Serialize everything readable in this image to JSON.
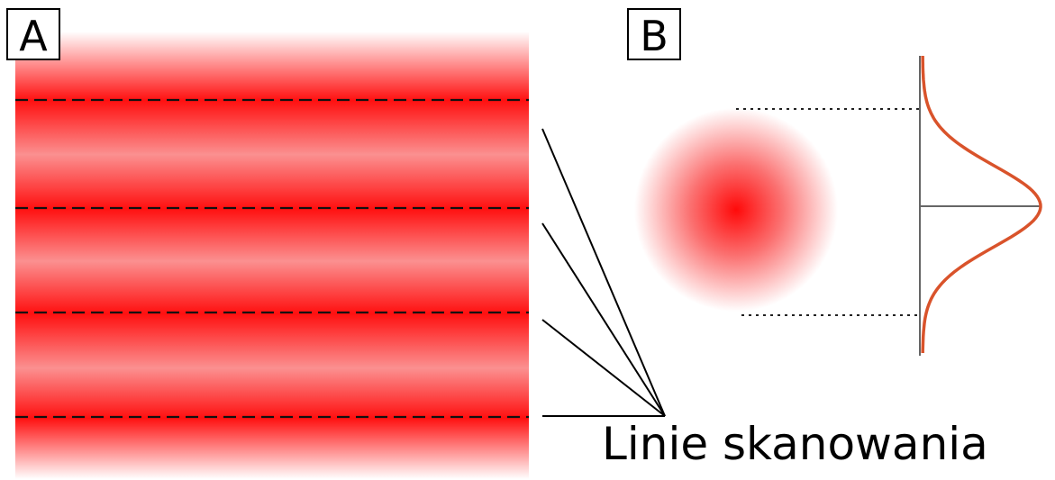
{
  "panel_a": {
    "label": "A"
  },
  "panel_b": {
    "label": "B"
  },
  "annotation": "Linie skanowania"
}
